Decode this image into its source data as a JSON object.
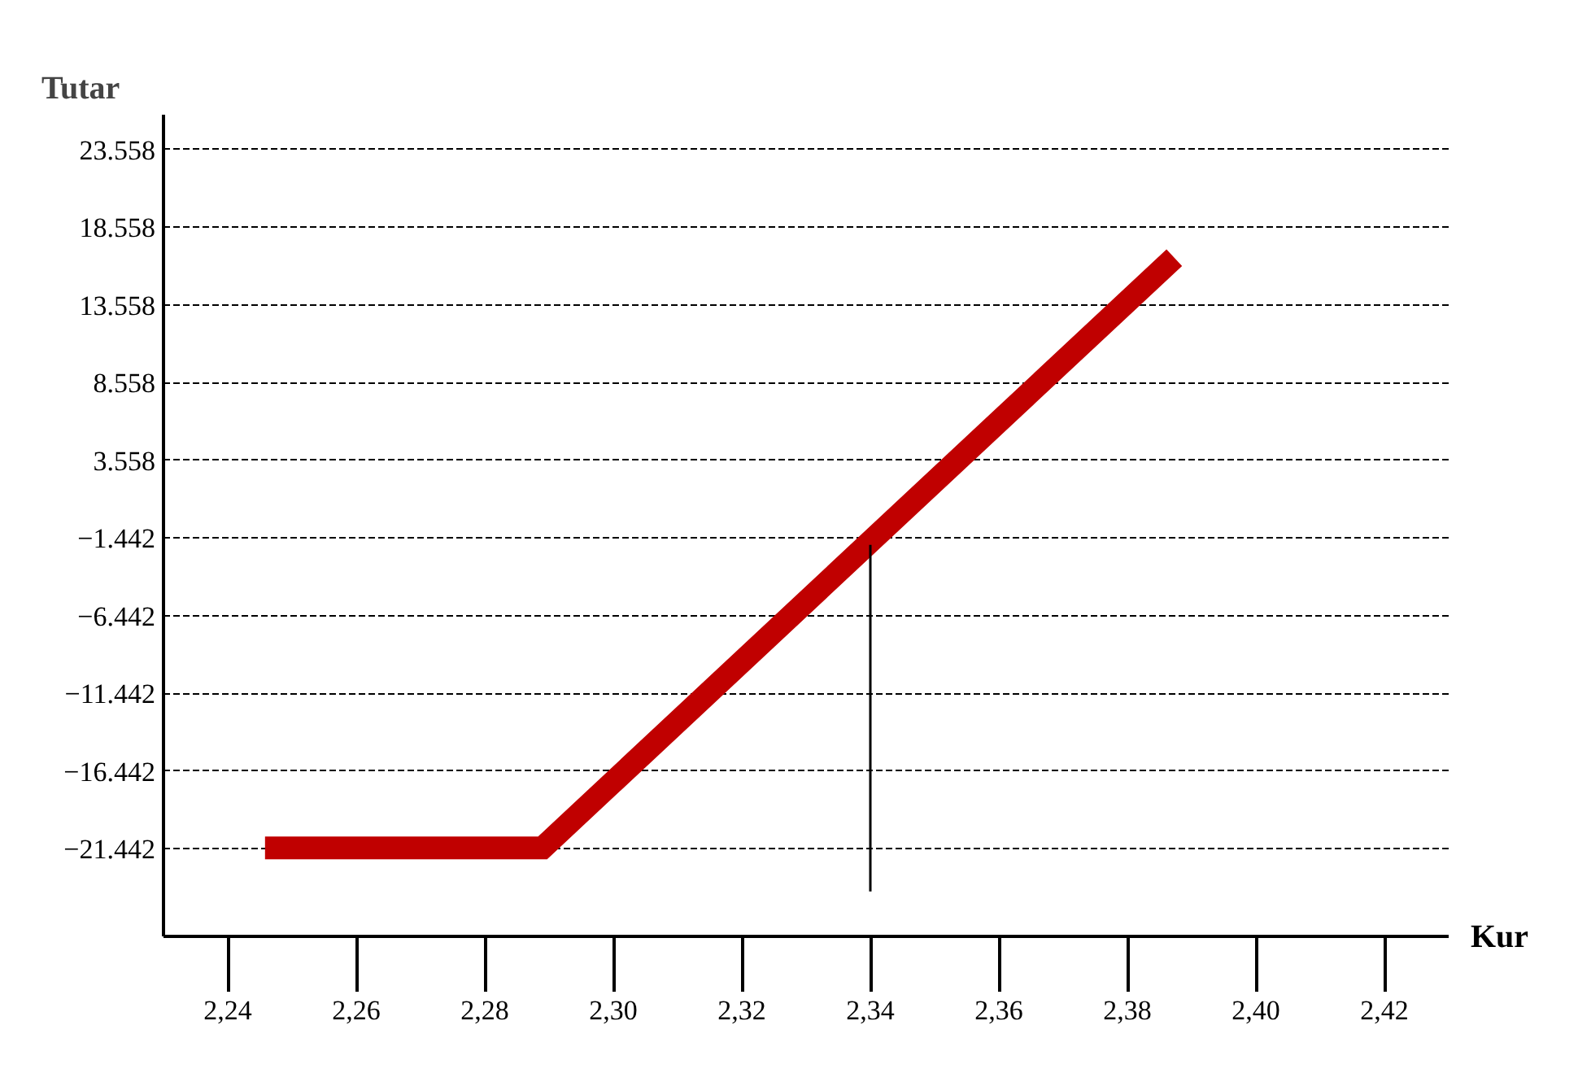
{
  "chart_data": {
    "type": "line",
    "xlabel": "Kur",
    "ylabel": "Tutar",
    "series": [
      {
        "color": "#c00000",
        "x": [
          2.2458,
          2.289,
          2.3873
        ],
        "values": [
          -21.4,
          -21.4,
          16.6
        ]
      },
      {
        "color": "#000000",
        "x": [
          2.34,
          2.34
        ],
        "values": [
          -1.9,
          -24.2
        ]
      }
    ],
    "xlim": [
      2.23,
      2.43
    ],
    "ylim": [
      -27.1,
      25.8
    ],
    "xticks": [
      {
        "value": 2.24,
        "label": "2,24"
      },
      {
        "value": 2.26,
        "label": "2,26"
      },
      {
        "value": 2.28,
        "label": "2,28"
      },
      {
        "value": 2.3,
        "label": "2,30"
      },
      {
        "value": 2.32,
        "label": "2,32"
      },
      {
        "value": 2.34,
        "label": "2,34"
      },
      {
        "value": 2.36,
        "label": "2,36"
      },
      {
        "value": 2.38,
        "label": "2,38"
      },
      {
        "value": 2.4,
        "label": "2,40"
      },
      {
        "value": 2.42,
        "label": "2,42"
      }
    ],
    "yticks": [
      -21.442,
      -16.442,
      -11.442,
      -6.442,
      -1.442,
      3.558,
      8.558,
      13.558,
      18.558,
      23.558
    ],
    "grid": "y"
  }
}
